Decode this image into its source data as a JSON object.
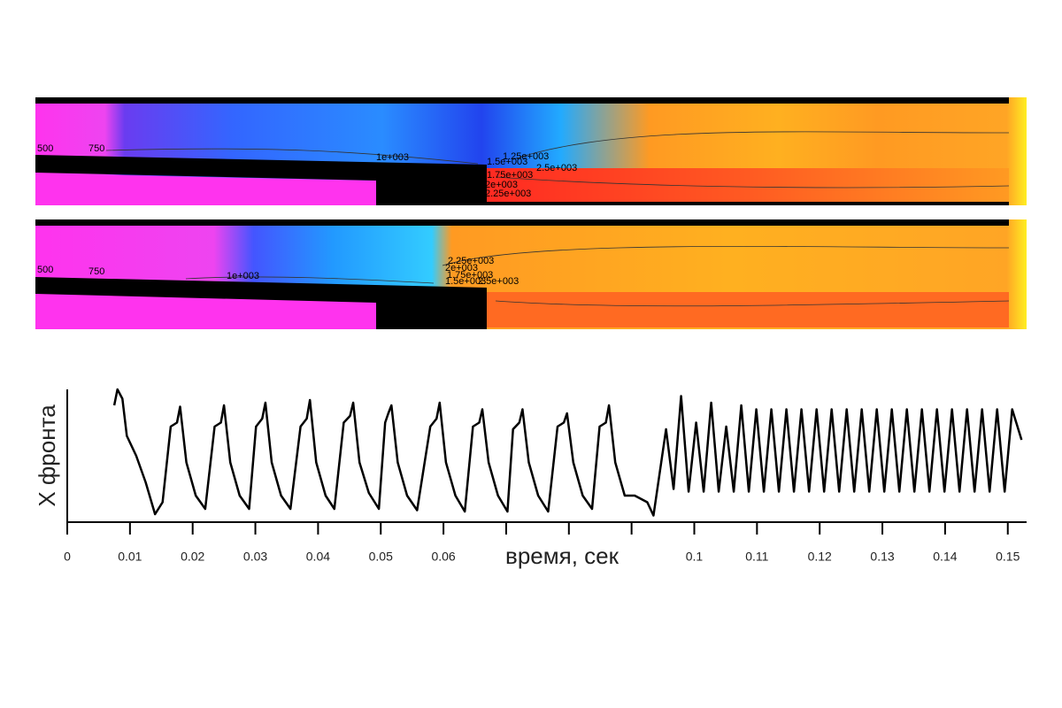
{
  "panels": [
    {
      "labels": [
        "500",
        "750",
        "1e+003",
        "1.25e+003",
        "1.5e+003",
        "1.75e+003",
        "2e+003",
        "2.25e+003",
        "2.5e+003"
      ]
    },
    {
      "labels": [
        "500",
        "750",
        "1e+003",
        "2.25e+003",
        "2e+003",
        "1.75e+003",
        "1.5e+003",
        "2.5e+003"
      ]
    }
  ],
  "chart_data": {
    "type": "line",
    "xlabel": "время, сек",
    "ylabel": "X фронта",
    "color": "#000000",
    "xlim": [
      0,
      0.153
    ],
    "ylim": [
      0,
      1
    ],
    "xticks": [
      0,
      0.01,
      0.02,
      0.03,
      0.04,
      0.05,
      0.06,
      {
        "value": 0.07,
        "label": null
      },
      {
        "value": 0.08,
        "label": null
      },
      {
        "value": 0.09,
        "label": null
      },
      0.1,
      0.11,
      0.12,
      0.13,
      0.14,
      0.15
    ],
    "x": [
      0.0075,
      0.008,
      0.0088,
      0.0095,
      0.011,
      0.0125,
      0.014,
      0.0152,
      0.0165,
      0.0175,
      0.018,
      0.019,
      0.0205,
      0.022,
      0.0235,
      0.0245,
      0.025,
      0.026,
      0.0275,
      0.029,
      0.0301,
      0.0311,
      0.0316,
      0.0326,
      0.0341,
      0.0356,
      0.0372,
      0.0382,
      0.0387,
      0.0397,
      0.0412,
      0.0426,
      0.0441,
      0.0451,
      0.0456,
      0.0466,
      0.0481,
      0.0497,
      0.0507,
      0.0512,
      0.0517,
      0.0527,
      0.0542,
      0.0558,
      0.0579,
      0.0589,
      0.0594,
      0.0604,
      0.0619,
      0.0634,
      0.0647,
      0.0657,
      0.0662,
      0.0672,
      0.0687,
      0.0702,
      0.0711,
      0.0721,
      0.0726,
      0.0736,
      0.0751,
      0.0767,
      0.0782,
      0.0792,
      0.0797,
      0.0807,
      0.0822,
      0.0837,
      0.0849,
      0.0859,
      0.0864,
      0.0874,
      0.0889,
      0.0905,
      0.0925,
      0.0935,
      0.0955,
      0.0967,
      0.0979,
      0.0991,
      0.1003,
      0.1015,
      0.1027,
      0.1039,
      0.1051,
      0.1063,
      0.1075,
      0.1087,
      0.1099,
      0.1111,
      0.1123,
      0.1135,
      0.1147,
      0.1159,
      0.1171,
      0.1183,
      0.1195,
      0.1207,
      0.1219,
      0.1231,
      0.1243,
      0.1255,
      0.1267,
      0.1279,
      0.1291,
      0.1303,
      0.1315,
      0.1327,
      0.1339,
      0.1351,
      0.1363,
      0.1375,
      0.1387,
      0.1399,
      0.1411,
      0.1423,
      0.1435,
      0.1447,
      0.1459,
      0.1471,
      0.1483,
      0.1495,
      0.1507,
      0.1522
    ],
    "values": [
      0.88,
      1.0,
      0.93,
      0.65,
      0.5,
      0.3,
      0.06,
      0.15,
      0.72,
      0.75,
      0.87,
      0.45,
      0.2,
      0.1,
      0.72,
      0.75,
      0.88,
      0.45,
      0.2,
      0.1,
      0.72,
      0.78,
      0.9,
      0.45,
      0.2,
      0.1,
      0.72,
      0.78,
      0.92,
      0.45,
      0.2,
      0.1,
      0.75,
      0.8,
      0.9,
      0.45,
      0.22,
      0.1,
      0.75,
      0.82,
      0.88,
      0.45,
      0.2,
      0.09,
      0.72,
      0.78,
      0.9,
      0.45,
      0.2,
      0.08,
      0.72,
      0.75,
      0.85,
      0.45,
      0.2,
      0.08,
      0.7,
      0.75,
      0.85,
      0.45,
      0.2,
      0.08,
      0.72,
      0.75,
      0.82,
      0.45,
      0.2,
      0.1,
      0.72,
      0.75,
      0.88,
      0.45,
      0.2,
      0.2,
      0.15,
      0.05,
      0.7,
      0.25,
      0.95,
      0.23,
      0.75,
      0.23,
      0.9,
      0.23,
      0.72,
      0.23,
      0.88,
      0.23,
      0.85,
      0.23,
      0.85,
      0.23,
      0.85,
      0.23,
      0.85,
      0.23,
      0.85,
      0.23,
      0.85,
      0.23,
      0.85,
      0.23,
      0.85,
      0.23,
      0.85,
      0.23,
      0.85,
      0.23,
      0.85,
      0.23,
      0.85,
      0.23,
      0.85,
      0.23,
      0.85,
      0.23,
      0.85,
      0.23,
      0.85,
      0.23,
      0.85,
      0.23,
      0.85,
      0.62
    ]
  }
}
